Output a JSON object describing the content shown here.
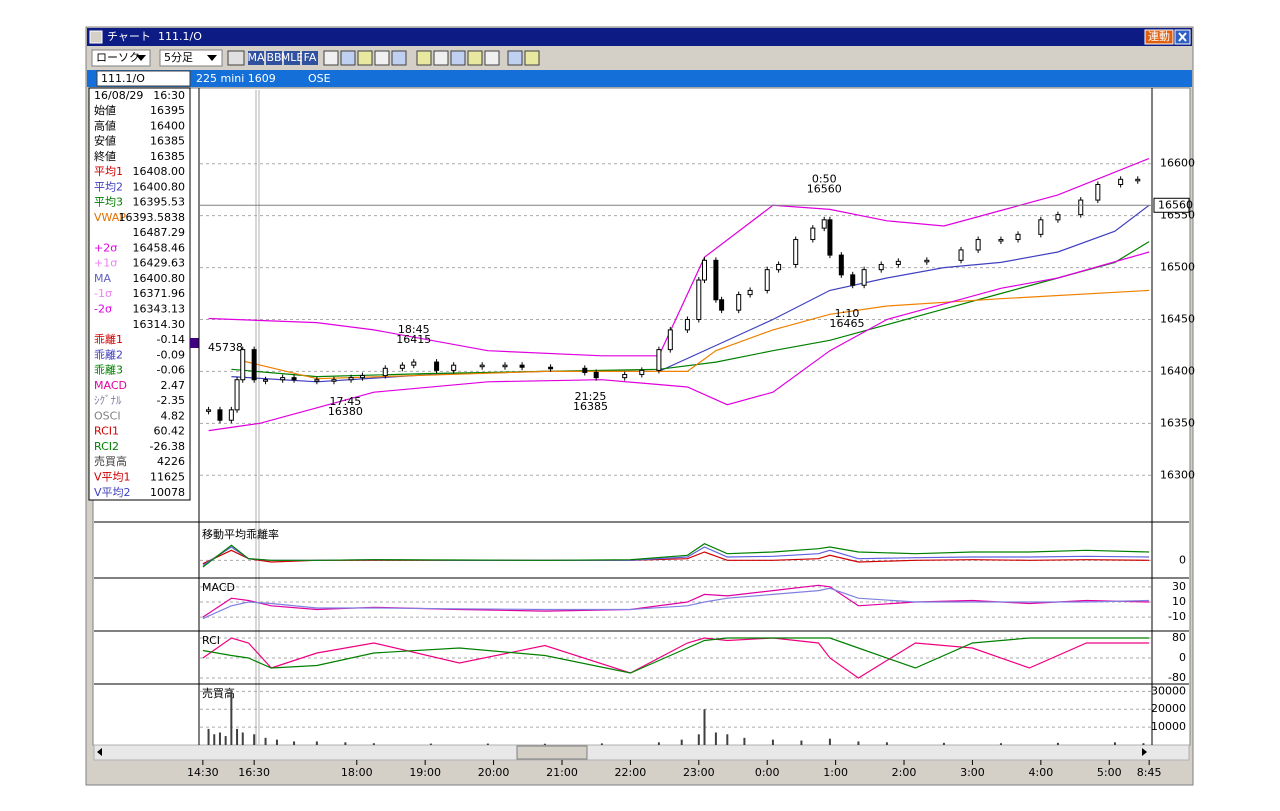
{
  "window": {
    "title": "チャート",
    "symbol": "111.1/O",
    "link_button": "連動"
  },
  "toolbar": {
    "chart_style": "ローソク",
    "interval": "5分足",
    "icon_labels": [
      "MA",
      "BB",
      "MLE",
      "FA"
    ]
  },
  "info_bar": {
    "symbol": "111.1/O",
    "contract": "225 mini 1609",
    "exchange": "OSE"
  },
  "info_panel": {
    "date": "16/08/29",
    "time": "16:30",
    "rows": [
      {
        "label": "始値",
        "value": "16395",
        "color": "#000000"
      },
      {
        "label": "高値",
        "value": "16400",
        "color": "#000000"
      },
      {
        "label": "安値",
        "value": "16385",
        "color": "#000000"
      },
      {
        "label": "終値",
        "value": "16385",
        "color": "#000000"
      },
      {
        "label": "平均1",
        "value": "16408.00",
        "color": "#d00000"
      },
      {
        "label": "平均2",
        "value": "16400.80",
        "color": "#4040c0"
      },
      {
        "label": "平均3",
        "value": "16395.53",
        "color": "#008000"
      },
      {
        "label": "VWAP",
        "value": "16393.5838",
        "color": "#e07000"
      },
      {
        "value": "16487.29",
        "color": "#000000"
      },
      {
        "label": "+2σ",
        "value": "16458.46",
        "color": "#e000e0"
      },
      {
        "label": "+1σ",
        "value": "16429.63",
        "color": "#f080f0"
      },
      {
        "label": "MA",
        "value": "16400.80",
        "color": "#6060c0"
      },
      {
        "label": "-1σ",
        "value": "16371.96",
        "color": "#f080f0"
      },
      {
        "label": "-2σ",
        "value": "16343.13",
        "color": "#e000e0"
      },
      {
        "value": "16314.30",
        "color": "#000000"
      },
      {
        "label": "乖離1",
        "value": "-0.14",
        "color": "#d00000"
      },
      {
        "label": "乖離2",
        "value": "-0.09",
        "color": "#4040c0"
      },
      {
        "label": "乖離3",
        "value": "-0.06",
        "color": "#008000"
      },
      {
        "label": "MACD",
        "value": "2.47",
        "color": "#e000a0"
      },
      {
        "label": "ｼｸﾞﾅﾙ",
        "value": "-2.35",
        "color": "#8080a0"
      },
      {
        "label": "OSCI",
        "value": "4.82",
        "color": "#808080"
      },
      {
        "label": "RCI1",
        "value": "60.42",
        "color": "#d00000"
      },
      {
        "label": "RCI2",
        "value": "-26.38",
        "color": "#008000"
      },
      {
        "label": "売買高",
        "value": "4226",
        "color": "#404040"
      },
      {
        "label": "V平均1",
        "value": "11625",
        "color": "#d00000"
      },
      {
        "label": "V平均2",
        "value": "10078",
        "color": "#4040c0"
      }
    ]
  },
  "marker_label": "45738",
  "chart_data": [
    {
      "type": "candlestick",
      "color": "#000000",
      "xlim": [
        -0.5,
        166.5
      ],
      "xticks": [
        {
          "value": 0,
          "label": "14:30"
        },
        {
          "value": 9,
          "label": "16:30"
        },
        {
          "value": 27,
          "label": "18:00"
        },
        {
          "value": 39,
          "label": "19:00"
        },
        {
          "value": 51,
          "label": "20:00"
        },
        {
          "value": 63,
          "label": "21:00"
        },
        {
          "value": 75,
          "label": "22:00"
        },
        {
          "value": 87,
          "label": "23:00"
        },
        {
          "value": 99,
          "label": "0:00"
        },
        {
          "value": 111,
          "label": "1:00"
        },
        {
          "value": 123,
          "label": "2:00"
        },
        {
          "value": 135,
          "label": "3:00"
        },
        {
          "value": 147,
          "label": "4:00"
        },
        {
          "value": 159,
          "label": "5:00"
        },
        {
          "value": 166,
          "label": "8:45"
        }
      ],
      "ylim": [
        16255,
        16671
      ],
      "yticks": [
        16600,
        16550,
        16500,
        16450,
        16400,
        16350,
        16300
      ],
      "grid": true,
      "x": [
        1,
        3,
        5,
        6,
        7,
        9,
        11,
        14,
        16,
        20,
        23,
        26,
        28,
        32,
        35,
        37,
        41,
        44,
        49,
        53,
        56,
        61,
        67,
        69,
        74,
        77,
        80,
        82,
        85,
        87,
        88,
        90,
        91,
        94,
        96,
        99,
        101,
        104,
        107,
        109,
        110,
        112,
        114,
        116,
        119,
        122,
        127,
        133,
        136,
        140,
        143,
        147,
        150,
        154,
        157,
        161,
        164
      ],
      "values": [
        16363,
        16353,
        16363,
        16392,
        16421,
        16392,
        16392,
        16394,
        16392,
        16392,
        16392,
        16394,
        16396,
        16403,
        16406,
        16409,
        16401,
        16406,
        16406,
        16406,
        16404,
        16403,
        16399,
        16394,
        16397,
        16401,
        16421,
        16440,
        16450,
        16488,
        16507,
        16469,
        16459,
        16474,
        16478,
        16498,
        16503,
        16527,
        16538,
        16546,
        16512,
        16493,
        16483,
        16498,
        16503,
        16506,
        16507,
        16517,
        16527,
        16527,
        16532,
        16546,
        16551,
        16565,
        16580,
        16585,
        16585
      ],
      "series": [
        {
          "color": "#4040c0",
          "x": [
            5,
            20,
            40,
            60,
            80,
            90,
            100,
            110,
            120,
            130,
            140,
            150,
            160,
            166
          ],
          "values": [
            16395,
            16390,
            16397,
            16400,
            16400,
            16425,
            16450,
            16478,
            16490,
            16500,
            16505,
            16515,
            16535,
            16560
          ]
        },
        {
          "color": "#008000",
          "x": [
            5,
            20,
            40,
            60,
            80,
            90,
            100,
            110,
            120,
            130,
            140,
            150,
            160,
            166
          ],
          "values": [
            16402,
            16395,
            16398,
            16400,
            16402,
            16409,
            16420,
            16430,
            16445,
            16460,
            16475,
            16490,
            16505,
            16525
          ]
        },
        {
          "color": "#f08000",
          "x": [
            7,
            20,
            60,
            85,
            90,
            100,
            110,
            120,
            140,
            166
          ],
          "values": [
            16410,
            16393,
            16400,
            16400,
            16420,
            16440,
            16455,
            16463,
            16470,
            16478
          ]
        },
        {
          "color": "#e000e0",
          "x": [
            1,
            20,
            30,
            50,
            70,
            80,
            88,
            100,
            110,
            120,
            130,
            140,
            150,
            166
          ],
          "values": [
            16451,
            16447,
            16440,
            16420,
            16415,
            16415,
            16510,
            16560,
            16556,
            16545,
            16540,
            16555,
            16570,
            16605
          ]
        },
        {
          "color": "#e000e0",
          "x": [
            1,
            10,
            20,
            30,
            50,
            70,
            85,
            92,
            100,
            110,
            120,
            130,
            140,
            150,
            166
          ],
          "values": [
            16343,
            16350,
            16365,
            16380,
            16390,
            16392,
            16385,
            16368,
            16380,
            16420,
            16450,
            16465,
            16480,
            16490,
            16515
          ]
        }
      ],
      "annotations": [
        {
          "time": "17:45",
          "price": 16380,
          "x": 25
        },
        {
          "time": "18:45",
          "price": 16415,
          "x": 37
        },
        {
          "time": "21:25",
          "price": 16385,
          "x": 68
        },
        {
          "time": "0:50",
          "price": 16560,
          "x": 109
        },
        {
          "time": "1:10",
          "price": 16465,
          "x": 113
        }
      ],
      "current_price": 16560
    },
    {
      "type": "line",
      "title": "移動平均乖離率",
      "ylim": [
        -0.5,
        1
      ],
      "yticks": [
        0
      ],
      "grid": true,
      "x": [
        0,
        5,
        8,
        12,
        20,
        30,
        45,
        60,
        75,
        85,
        88,
        92,
        100,
        108,
        110,
        115,
        125,
        135,
        145,
        155,
        166
      ],
      "series": [
        {
          "color": "#d00000",
          "values": [
            -0.1,
            0.3,
            0.05,
            -0.05,
            0,
            0,
            0,
            0,
            0,
            0.05,
            0.25,
            0,
            0,
            0.05,
            0.15,
            -0.05,
            0,
            0.02,
            0,
            0.02,
            0
          ]
        },
        {
          "color": "#6060e0",
          "values": [
            -0.15,
            0.4,
            0.05,
            0,
            0,
            0.02,
            0,
            0,
            0,
            0.1,
            0.4,
            0.1,
            0.12,
            0.2,
            0.3,
            0.05,
            0.08,
            0.1,
            0.1,
            0.12,
            0.1
          ]
        },
        {
          "color": "#008000",
          "values": [
            -0.2,
            0.45,
            0.05,
            0,
            0,
            0.02,
            0.01,
            0,
            0.02,
            0.15,
            0.5,
            0.2,
            0.25,
            0.35,
            0.4,
            0.25,
            0.2,
            0.25,
            0.25,
            0.3,
            0.25
          ]
        }
      ]
    },
    {
      "type": "line",
      "title": "MACD",
      "ylim": [
        -27,
        39
      ],
      "yticks": [
        30,
        10,
        -10
      ],
      "grid": true,
      "x": [
        0,
        5,
        8,
        12,
        20,
        30,
        45,
        60,
        75,
        85,
        88,
        92,
        100,
        108,
        110,
        115,
        125,
        135,
        145,
        155,
        166
      ],
      "series": [
        {
          "color": "#e000a0",
          "values": [
            -10,
            15,
            12,
            5,
            0,
            3,
            0,
            -2,
            0,
            10,
            20,
            18,
            25,
            32,
            30,
            5,
            10,
            12,
            8,
            12,
            10
          ]
        },
        {
          "color": "#8080e0",
          "values": [
            -12,
            5,
            10,
            8,
            2,
            2,
            1,
            0,
            0,
            5,
            10,
            15,
            20,
            25,
            28,
            15,
            10,
            10,
            10,
            10,
            12
          ]
        }
      ]
    },
    {
      "type": "line",
      "title": "RCI",
      "ylim": [
        -100,
        100
      ],
      "yticks": [
        80,
        0,
        -80
      ],
      "grid": true,
      "x": [
        0,
        5,
        8,
        12,
        20,
        30,
        45,
        60,
        75,
        85,
        88,
        92,
        100,
        108,
        110,
        115,
        125,
        135,
        145,
        155,
        166
      ],
      "series": [
        {
          "color": "#f00080",
          "values": [
            0,
            80,
            60,
            -40,
            20,
            60,
            -20,
            50,
            -60,
            60,
            80,
            70,
            80,
            60,
            0,
            -80,
            60,
            40,
            -40,
            60,
            60
          ]
        },
        {
          "color": "#008000",
          "values": [
            30,
            10,
            0,
            -40,
            -30,
            20,
            40,
            10,
            -60,
            40,
            70,
            80,
            80,
            80,
            80,
            40,
            -40,
            60,
            80,
            80,
            80
          ]
        }
      ]
    },
    {
      "type": "bar",
      "title": "売買高",
      "ylim": [
        0,
        33000
      ],
      "yticks": [
        30000,
        20000,
        10000
      ],
      "grid": true,
      "color": "#404040",
      "x": [
        1,
        2,
        3,
        4,
        5,
        6,
        7,
        9,
        11,
        13,
        16,
        20,
        25,
        30,
        40,
        50,
        60,
        70,
        80,
        84,
        87,
        88,
        90,
        92,
        95,
        100,
        105,
        110,
        115,
        120,
        130,
        140,
        150,
        160,
        165
      ],
      "values": [
        9000,
        6000,
        7000,
        5000,
        30000,
        9000,
        7000,
        6000,
        4000,
        3000,
        2000,
        2000,
        1500,
        1000,
        800,
        800,
        700,
        900,
        1500,
        3000,
        6000,
        20000,
        7000,
        6000,
        4000,
        3000,
        2500,
        3500,
        2000,
        1500,
        1200,
        1000,
        1200,
        1500,
        1000
      ]
    }
  ]
}
